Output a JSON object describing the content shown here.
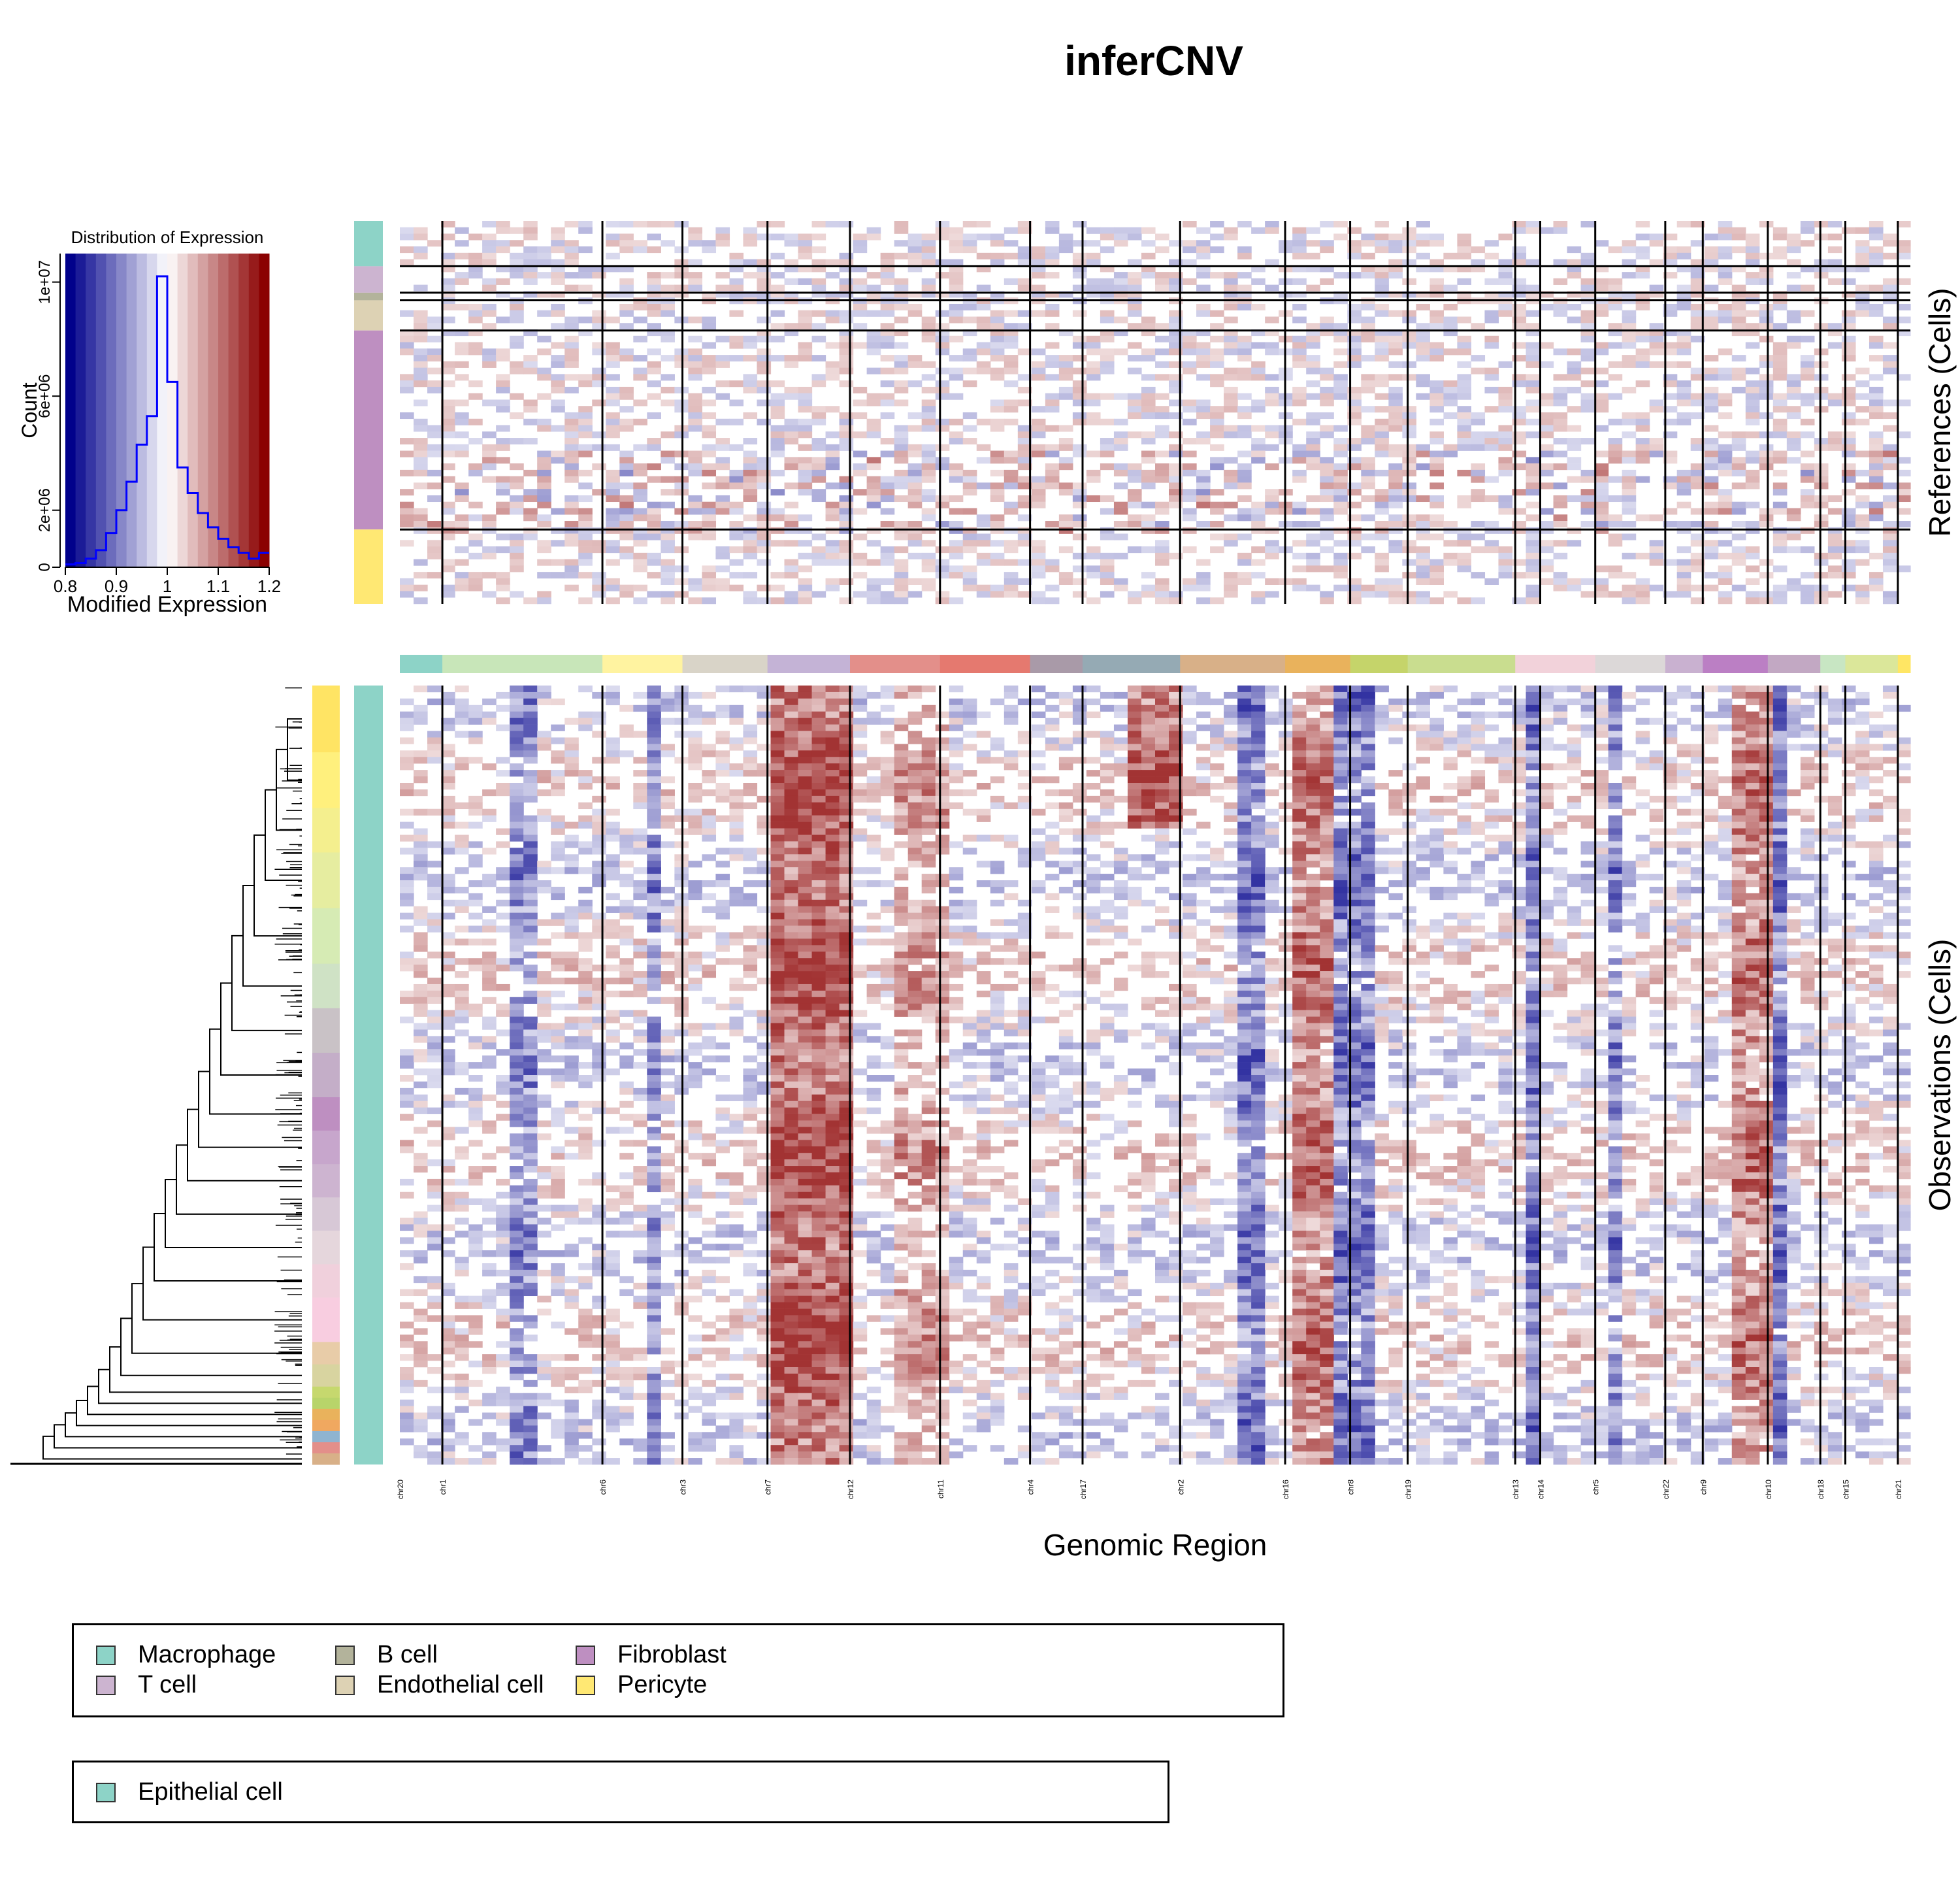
{
  "title": "inferCNV",
  "chart_data": {
    "type": "heatmap",
    "title": "inferCNV",
    "xlabel": "Genomic Region",
    "ref_ylabel": "References (Cells)",
    "obs_ylabel": "Observations (Cells)",
    "value_range": [
      0.8,
      1.2
    ],
    "colors": {
      "low": "#00008b",
      "mid": "#ffffff",
      "high": "#8b0000"
    },
    "chromosomes": [
      {
        "name": "chr20",
        "width": 34,
        "color": "#8dd3c7"
      },
      {
        "name": "chr1",
        "width": 128,
        "color": "#c8e6b9"
      },
      {
        "name": "chr6",
        "width": 64,
        "color": "#fff3a0"
      },
      {
        "name": "chr3",
        "width": 68,
        "color": "#d9d4c8"
      },
      {
        "name": "chr7",
        "width": 66,
        "color": "#c4b3d6"
      },
      {
        "name": "chr12",
        "width": 72,
        "color": "#e38f8a"
      },
      {
        "name": "chr11",
        "width": 72,
        "color": "#e5796f"
      },
      {
        "name": "chr4",
        "width": 42,
        "color": "#a99aa8"
      },
      {
        "name": "chr17",
        "width": 78,
        "color": "#95aab4"
      },
      {
        "name": "chr2",
        "width": 84,
        "color": "#d8b088"
      },
      {
        "name": "chr16",
        "width": 52,
        "color": "#e9b25c"
      },
      {
        "name": "chr8",
        "width": 46,
        "color": "#c5d46a"
      },
      {
        "name": "chr19",
        "width": 86,
        "color": "#c9dd8f"
      },
      {
        "name": "chr13",
        "width": 20,
        "color": "#f2d2da"
      },
      {
        "name": "chr14",
        "width": 44,
        "color": "#f2d2da"
      },
      {
        "name": "chr5",
        "width": 56,
        "color": "#dcd8d8"
      },
      {
        "name": "chr22",
        "width": 30,
        "color": "#c9b1d0"
      },
      {
        "name": "chr9",
        "width": 52,
        "color": "#bb7fc4"
      },
      {
        "name": "chr10",
        "width": 42,
        "color": "#c2a8c3"
      },
      {
        "name": "chr18",
        "width": 20,
        "color": "#c8e6c3"
      },
      {
        "name": "chr15",
        "width": 42,
        "color": "#dbe79a"
      },
      {
        "name": "chr21",
        "width": 10,
        "color": "#ffe664"
      }
    ],
    "reference_groups": [
      {
        "name": "Macrophage",
        "color": "#8dd3c7",
        "rows": 36
      },
      {
        "name": "T cell",
        "color": "#ccb4d0",
        "rows": 21
      },
      {
        "name": "B cell",
        "color": "#b3b39b",
        "rows": 6
      },
      {
        "name": "Endothelial cell",
        "color": "#ddd2b4",
        "rows": 24
      },
      {
        "name": "Fibroblast",
        "color": "#be8fc1",
        "rows": 158
      },
      {
        "name": "Pericyte",
        "color": "#ffe873",
        "rows": 59
      }
    ],
    "observation_groups": [
      {
        "name": "Epithelial cell",
        "color": "#8dd3c7"
      }
    ],
    "histogram": {
      "title": "Distribution of Expression",
      "xlabel": "Modified Expression",
      "ylabel": "Count",
      "xlim": [
        0.8,
        1.2
      ],
      "ylim": [
        0,
        11000000
      ],
      "xticks": [
        "0.8",
        "0.9",
        "1",
        "1.1",
        "1.2"
      ],
      "yticks": [
        "0",
        "2e+06",
        "6e+06",
        "1e+07"
      ],
      "ytick_values": [
        0,
        2000000,
        6000000,
        10000000
      ],
      "bins": [
        0.8,
        0.82,
        0.84,
        0.86,
        0.88,
        0.9,
        0.92,
        0.94,
        0.96,
        0.98,
        1.0,
        1.02,
        1.04,
        1.06,
        1.08,
        1.1,
        1.12,
        1.14,
        1.16,
        1.18,
        1.2
      ],
      "counts": [
        100000,
        150000,
        300000,
        600000,
        1200000,
        2000000,
        3000000,
        4300000,
        5300000,
        10200000,
        6500000,
        3500000,
        2600000,
        1900000,
        1400000,
        1000000,
        700000,
        500000,
        300000,
        500000
      ],
      "line_color": "#0000ff"
    }
  },
  "legends": [
    {
      "items": [
        {
          "label": "Macrophage",
          "color": "#8dd3c7"
        },
        {
          "label": "T cell",
          "color": "#ccb4d0"
        },
        {
          "label": "B cell",
          "color": "#b3b39b"
        },
        {
          "label": "Endothelial cell",
          "color": "#ddd2b4"
        },
        {
          "label": "Fibroblast",
          "color": "#be8fc1"
        },
        {
          "label": "Pericyte",
          "color": "#ffe873"
        }
      ]
    },
    {
      "items": [
        {
          "label": "Epithelial cell",
          "color": "#8dd3c7"
        }
      ]
    }
  ]
}
